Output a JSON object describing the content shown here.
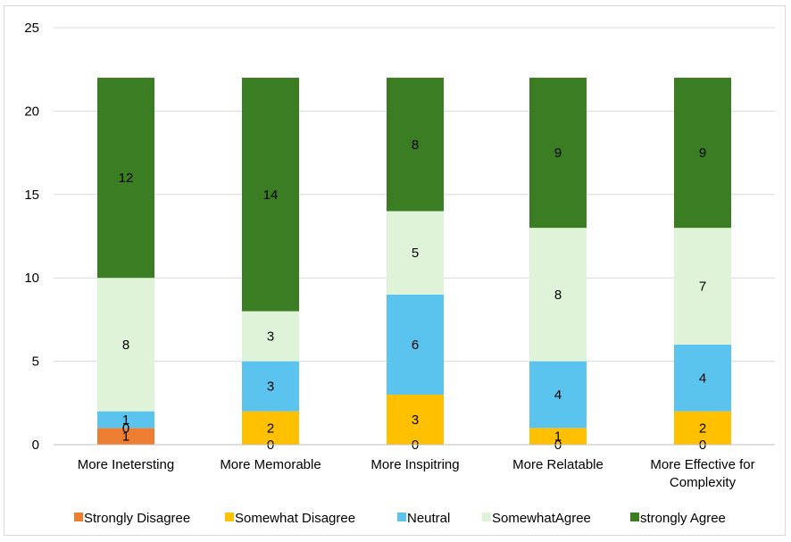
{
  "chart_data": {
    "type": "bar",
    "stacked": true,
    "title": "",
    "xlabel": "",
    "ylabel": "",
    "ylim": [
      0,
      25
    ],
    "yticks": [
      0,
      5,
      10,
      15,
      20,
      25
    ],
    "grid": true,
    "legend_position": "bottom",
    "categories": [
      [
        "More Inetersting"
      ],
      [
        "More Memorable"
      ],
      [
        "More Inspitring"
      ],
      [
        "More Relatable"
      ],
      [
        "More Effective for",
        "Complexity"
      ]
    ],
    "series": [
      {
        "name": "Strongly Disagree",
        "color": "#ED7D31",
        "values": [
          1,
          0,
          0,
          0,
          0
        ]
      },
      {
        "name": "Somewhat Disagree",
        "color": "#FFC000",
        "values": [
          0,
          2,
          3,
          1,
          2
        ]
      },
      {
        "name": "Neutral",
        "color": "#5BC4EE",
        "values": [
          1,
          3,
          6,
          4,
          4
        ]
      },
      {
        "name": "SomewhatAgree",
        "color": "#DFF3D8",
        "values": [
          8,
          3,
          5,
          8,
          7
        ]
      },
      {
        "name": "strongly Agree",
        "color": "#3B7D23",
        "values": [
          12,
          14,
          8,
          9,
          9
        ]
      }
    ],
    "segment_labels": [
      [
        "1",
        "0",
        "1",
        "8",
        "12"
      ],
      [
        "",
        "2",
        "3",
        "3",
        "14"
      ],
      [
        "",
        "3",
        "6",
        "5",
        "8"
      ],
      [
        "",
        "1",
        "4",
        "8",
        "9"
      ],
      [
        "",
        "2",
        "4",
        "7",
        "9"
      ]
    ],
    "zero_labels": [
      "",
      "0",
      "0",
      "0",
      "0"
    ]
  }
}
